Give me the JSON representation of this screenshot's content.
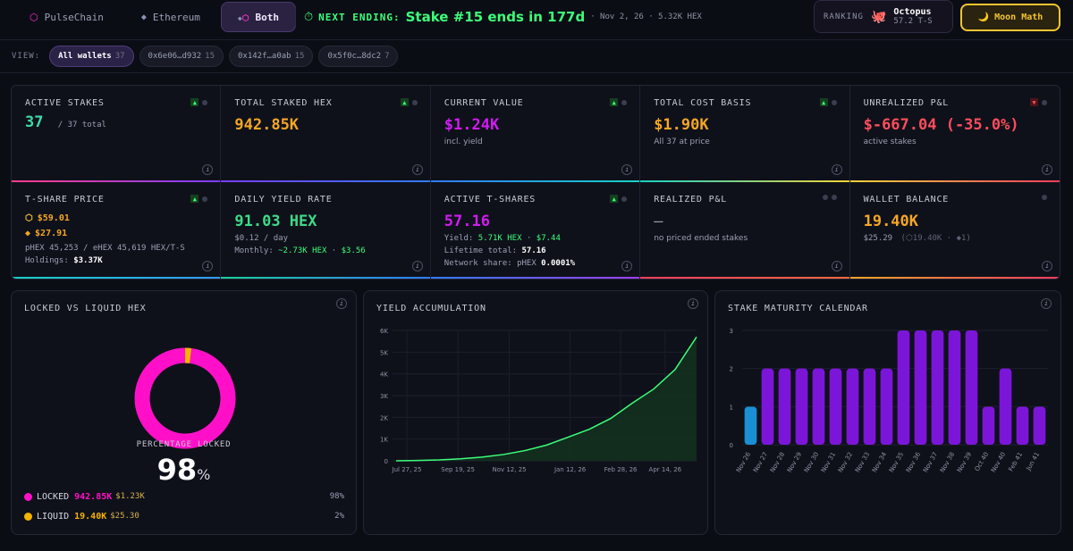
{
  "chain_tabs": [
    {
      "label": "PulseChain",
      "icon": "hexagon-icon",
      "active": false
    },
    {
      "label": "Ethereum",
      "icon": "diamond-icon",
      "active": false
    },
    {
      "label": "Both",
      "icon": "hexagon-diamond-icon",
      "active": true
    }
  ],
  "next_ending": {
    "label": "NEXT ENDING:",
    "main": "Stake #15 ends in 177d",
    "sub": "· Nov 2, 26 · 5.32K HEX"
  },
  "ranking": {
    "label": "RANKING",
    "name": "Octopus",
    "tshares": "57.2 T-S"
  },
  "moon_math": {
    "label": "Moon Math"
  },
  "view": {
    "label": "VIEW:",
    "wallets": [
      {
        "name": "All wallets",
        "count": "37",
        "active": true
      },
      {
        "name": "0x6e06…d932",
        "count": "15",
        "active": false
      },
      {
        "name": "0x142f…a0ab",
        "count": "15",
        "active": false
      },
      {
        "name": "0x5f0c…8dc2",
        "count": "7",
        "active": false
      }
    ]
  },
  "stats": {
    "active_stakes": {
      "title": "ACTIVE STAKES",
      "value": "37",
      "suffix": "/ 37 total"
    },
    "total_staked": {
      "title": "TOTAL STAKED HEX",
      "value": "942.85K"
    },
    "current_value": {
      "title": "CURRENT VALUE",
      "value": "$1.24K",
      "sub": "incl. yield"
    },
    "cost_basis": {
      "title": "TOTAL COST BASIS",
      "value": "$1.90K",
      "sub": "All 37 at price"
    },
    "unrealized": {
      "title": "UNREALIZED P&L",
      "value": "$-667.04 (-35.0%)",
      "sub": "active stakes"
    },
    "tshare_price": {
      "title": "T-SHARE PRICE",
      "p_price": "$59.01",
      "e_price": "$27.91",
      "line1": "pHEX 45,253 / eHEX 45,619 HEX/T-S",
      "holdings_label": "Holdings:",
      "holdings_value": "$3.37K"
    },
    "daily_yield": {
      "title": "DAILY YIELD RATE",
      "value": "91.03 HEX",
      "sub": "$0.12 / day",
      "monthly_label": "Monthly:",
      "monthly_hex": "~2.73K HEX",
      "monthly_usd": "$3.56"
    },
    "active_tshares": {
      "title": "ACTIVE T-SHARES",
      "value": "57.16",
      "yield_label": "Yield:",
      "yield_hex": "5.71K HEX",
      "yield_usd": "$7.44",
      "lifetime_label": "Lifetime total:",
      "lifetime_value": "57.16",
      "network_label": "Network share: pHEX",
      "network_value": "0.0001%"
    },
    "realized": {
      "title": "REALIZED P&L",
      "value": "—",
      "sub": "no priced ended stakes"
    },
    "wallet_balance": {
      "title": "WALLET BALANCE",
      "value": "19.40K",
      "sub": "$25.29",
      "sub2": "(⬡19.40K · ◆1)"
    }
  },
  "locked_liquid": {
    "title": "LOCKED VS LIQUID HEX",
    "percentage_label": "PERCENTAGE LOCKED",
    "percentage_value": "98",
    "percent_sign": "%",
    "locked_fraction": 0.98,
    "locked": {
      "name": "LOCKED",
      "hex": "942.85K",
      "usd": "$1.23K",
      "pct": "98%",
      "color": "#ff10c8"
    },
    "liquid": {
      "name": "LIQUID",
      "hex": "19.40K",
      "usd": "$25.30",
      "pct": "2%",
      "color": "#f4b400"
    }
  },
  "chart_data": [
    {
      "type": "area",
      "title": "YIELD ACCUMULATION",
      "x_ticks": [
        "Jul 27, 25",
        "Sep 19, 25",
        "Nov 12, 25",
        "Jan 12, 26",
        "Feb 28, 26",
        "Apr 14, 26"
      ],
      "y_ticks": [
        "0",
        "1K",
        "2K",
        "3K",
        "4K",
        "5K",
        "6K"
      ],
      "ylim": [
        0,
        6000
      ],
      "x": [
        "Jul 27, 25",
        "Aug 20, 25",
        "Sep 19, 25",
        "Oct 15, 25",
        "Nov 12, 25",
        "Dec 10, 25",
        "Jan 12, 26",
        "Feb 5, 26",
        "Feb 28, 26",
        "Mar 15, 26",
        "Apr 1, 26",
        "Apr 14, 26",
        "Apr 22, 26",
        "Apr 28, 26",
        "May 3, 26"
      ],
      "values": [
        0,
        15,
        40,
        90,
        170,
        290,
        470,
        720,
        1080,
        1450,
        1950,
        2650,
        3300,
        4200,
        5700
      ],
      "grid": true,
      "color": "#3dff7a"
    },
    {
      "type": "bar",
      "title": "STAKE MATURITY CALENDAR",
      "categories": [
        "Nov 26",
        "Nov 27",
        "Nov 28",
        "Nov 29",
        "Nov 30",
        "Nov 31",
        "Nov 32",
        "Nov 33",
        "Nov 34",
        "Nov 35",
        "Nov 36",
        "Nov 37",
        "Nov 38",
        "Nov 39",
        "Oct 40",
        "Nov 40",
        "Feb 41",
        "Jun 41"
      ],
      "values": [
        1,
        2,
        2,
        2,
        2,
        2,
        2,
        2,
        2,
        3,
        3,
        3,
        3,
        3,
        1,
        2,
        1,
        1
      ],
      "y_ticks": [
        "0",
        "1",
        "2",
        "3"
      ],
      "ylim": [
        0,
        3
      ],
      "grid": true,
      "highlight_color": "#1a8fd4",
      "bar_color": "#7b16d9"
    }
  ]
}
